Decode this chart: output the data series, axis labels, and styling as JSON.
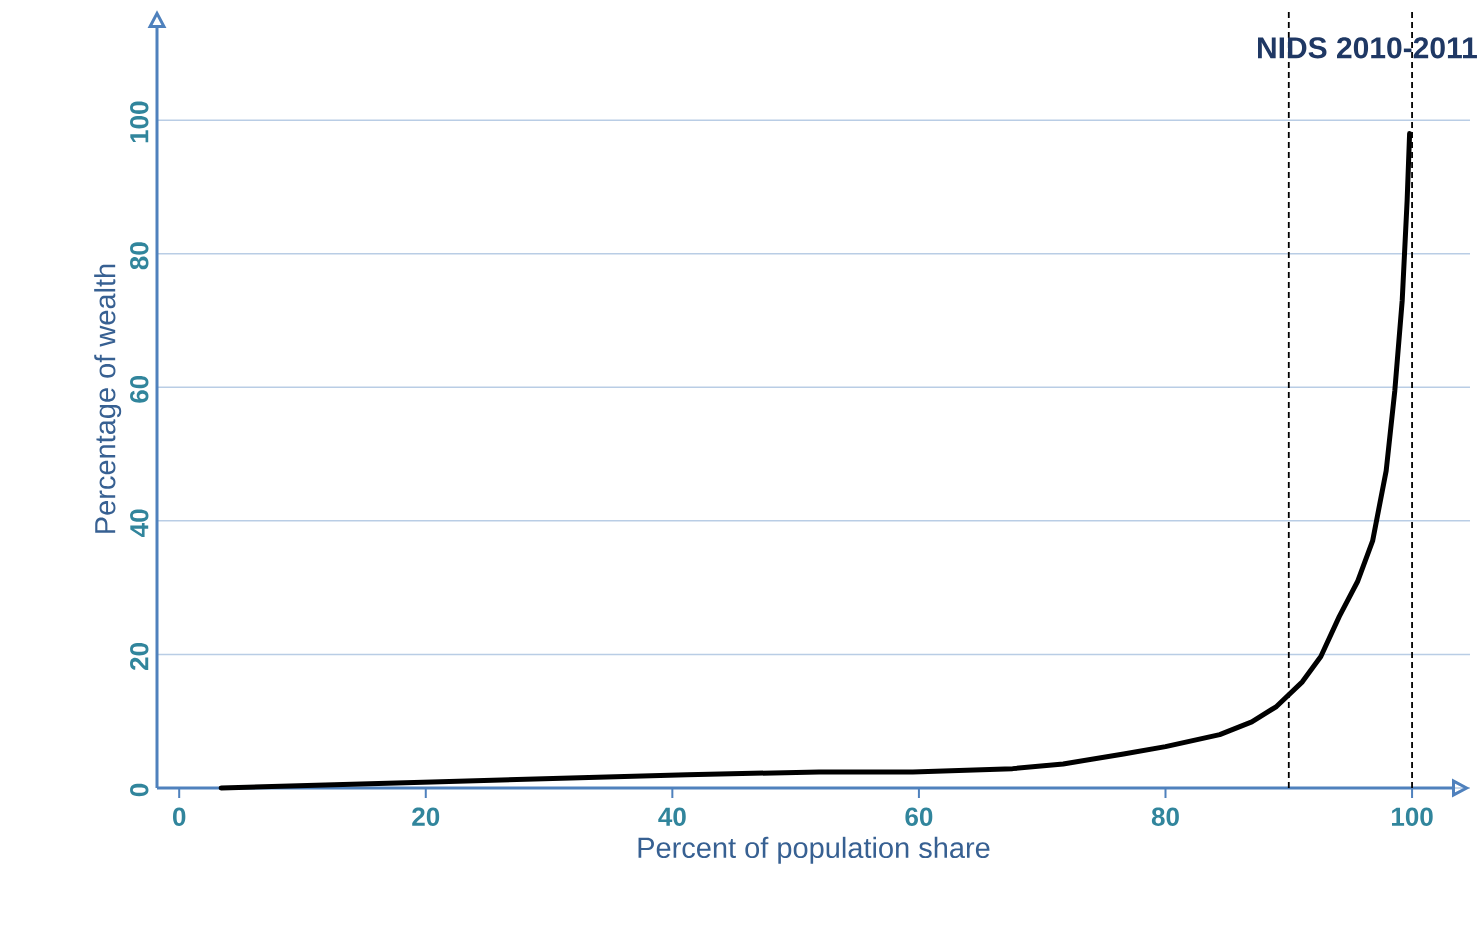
{
  "chart_data": {
    "type": "line",
    "title": "NIDS 2010-2011",
    "xlabel": "Percent of population share",
    "ylabel": "Percentage of wealth",
    "x": [
      3.4,
      20.5,
      41.2,
      51.9,
      59.5,
      67.6,
      71.7,
      76.6,
      80,
      84.4,
      87,
      89,
      91.1,
      92.6,
      94.1,
      95.6,
      96.8,
      97.9,
      98.6,
      99.2,
      99.6,
      99.8
    ],
    "series": [
      {
        "color": "#000000",
        "values": [
          0,
          0.9,
          2.0,
          2.4,
          2.4,
          2.9,
          3.6,
          5.1,
          6.2,
          8.0,
          9.9,
          12.2,
          15.9,
          19.7,
          25.7,
          31,
          37,
          47.5,
          59.5,
          73,
          88,
          98
        ]
      }
    ],
    "xlim": [
      -1.8,
      104.7
    ],
    "ylim": [
      0,
      116.5
    ],
    "xticks": [
      0,
      20,
      40,
      60,
      80,
      100
    ],
    "yticks": [
      0,
      20,
      40,
      60,
      80,
      100
    ],
    "grid": "y",
    "line_style": "solid",
    "ref_lines": [
      {
        "axis": "x",
        "value": 90,
        "color": "#000000",
        "line_style": "dashed"
      },
      {
        "axis": "x",
        "value": 100,
        "color": "#000000",
        "line_style": "dashed"
      }
    ]
  }
}
